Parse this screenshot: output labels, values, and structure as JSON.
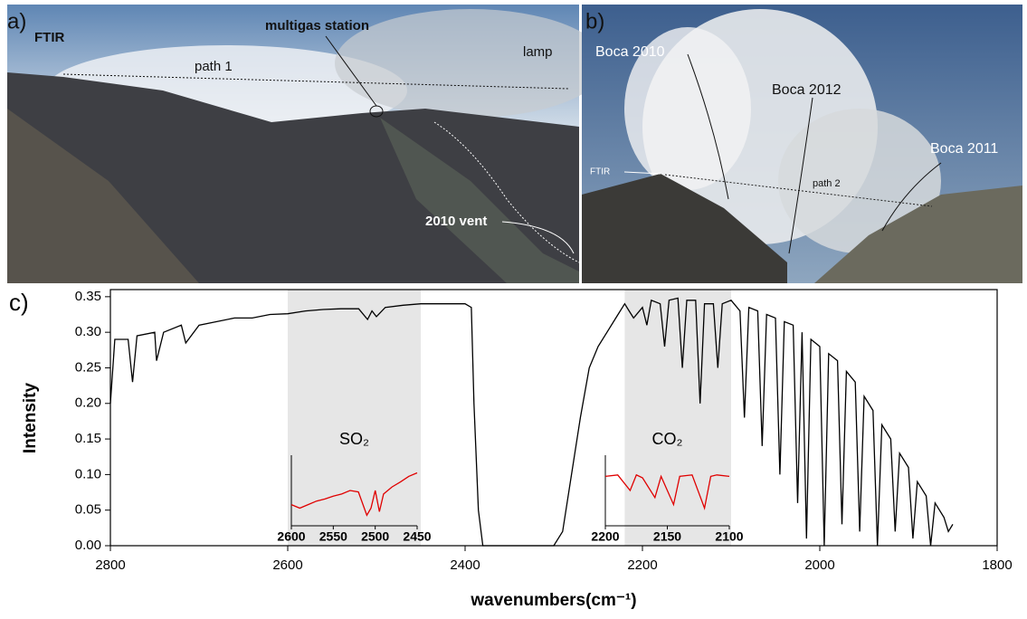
{
  "photos": [
    {
      "panel": "a)",
      "labels": [
        "FTIR",
        "multigas station",
        "path 1",
        "lamp",
        "2010 vent"
      ]
    },
    {
      "panel": "b)",
      "labels": [
        "Boca 2010",
        "Boca 2012",
        "Boca 2011",
        "FTIR",
        "path 2"
      ]
    }
  ],
  "chart_data": [
    {
      "type": "line",
      "panel": "c)",
      "x_label": "wavenumbers(cm⁻¹)",
      "y_label": "Intensity",
      "color": "#000000",
      "xlim": [
        2800,
        1800
      ],
      "ylim": [
        0,
        0.36
      ],
      "xticks": [
        2800,
        2600,
        2400,
        2200,
        2000,
        1800
      ],
      "yticks": [
        {
          "value": 0,
          "label": "0.00"
        },
        {
          "value": 0.05,
          "label": "0.05"
        },
        {
          "value": 0.1,
          "label": "0.10"
        },
        {
          "value": 0.15,
          "label": "0.15"
        },
        {
          "value": 0.2,
          "label": "0.20"
        },
        {
          "value": 0.25,
          "label": "0.25"
        },
        {
          "value": 0.3,
          "label": "0.30"
        },
        {
          "value": 0.35,
          "label": "0.35"
        }
      ],
      "highlight_regions": [
        [
          2600,
          2450
        ],
        [
          2220,
          2100
        ]
      ],
      "x": [
        2800,
        2795,
        2780,
        2775,
        2770,
        2750,
        2748,
        2740,
        2720,
        2715,
        2700,
        2680,
        2660,
        2640,
        2620,
        2600,
        2580,
        2560,
        2540,
        2520,
        2510,
        2505,
        2500,
        2490,
        2470,
        2450,
        2420,
        2400,
        2393,
        2390,
        2385,
        2380,
        2300,
        2290,
        2280,
        2270,
        2260,
        2250,
        2240,
        2230,
        2220,
        2215,
        2210,
        2200,
        2195,
        2190,
        2180,
        2175,
        2170,
        2160,
        2155,
        2150,
        2140,
        2135,
        2130,
        2120,
        2115,
        2110,
        2100,
        2090,
        2085,
        2080,
        2070,
        2065,
        2060,
        2050,
        2045,
        2040,
        2030,
        2025,
        2020,
        2015,
        2010,
        2000,
        1995,
        1990,
        1980,
        1975,
        1970,
        1960,
        1955,
        1950,
        1940,
        1935,
        1930,
        1920,
        1915,
        1910,
        1900,
        1895,
        1890,
        1880,
        1875,
        1870,
        1860,
        1855,
        1850
      ],
      "values": [
        0.2,
        0.29,
        0.29,
        0.23,
        0.295,
        0.3,
        0.26,
        0.3,
        0.31,
        0.285,
        0.31,
        0.315,
        0.32,
        0.32,
        0.325,
        0.326,
        0.33,
        0.332,
        0.333,
        0.333,
        0.318,
        0.33,
        0.322,
        0.335,
        0.338,
        0.34,
        0.34,
        0.34,
        0.335,
        0.2,
        0.05,
        0,
        0,
        0.02,
        0.1,
        0.18,
        0.25,
        0.28,
        0.3,
        0.32,
        0.34,
        0.33,
        0.32,
        0.335,
        0.31,
        0.345,
        0.34,
        0.28,
        0.345,
        0.348,
        0.25,
        0.345,
        0.345,
        0.2,
        0.34,
        0.34,
        0.25,
        0.34,
        0.345,
        0.33,
        0.18,
        0.335,
        0.33,
        0.14,
        0.325,
        0.32,
        0.1,
        0.315,
        0.31,
        0.06,
        0.3,
        0.01,
        0.29,
        0.28,
        0,
        0.27,
        0.26,
        0.03,
        0.245,
        0.23,
        0.02,
        0.21,
        0.19,
        0,
        0.17,
        0.15,
        0.02,
        0.13,
        0.11,
        0.01,
        0.09,
        0.07,
        0,
        0.06,
        0.04,
        0.02,
        0.03
      ]
    },
    {
      "type": "inset",
      "label": "SO₂",
      "color": "#e00000",
      "xlim": [
        2600,
        2450
      ],
      "ylim": [
        0,
        1
      ],
      "xticks": [
        2600,
        2550,
        2500,
        2450
      ],
      "x": [
        2600,
        2590,
        2580,
        2570,
        2560,
        2550,
        2540,
        2530,
        2520,
        2510,
        2505,
        2500,
        2495,
        2490,
        2480,
        2470,
        2460,
        2450
      ],
      "values": [
        0.3,
        0.25,
        0.3,
        0.35,
        0.38,
        0.42,
        0.45,
        0.5,
        0.48,
        0.15,
        0.25,
        0.5,
        0.2,
        0.45,
        0.55,
        0.62,
        0.7,
        0.75
      ]
    },
    {
      "type": "inset",
      "label": "CO₂",
      "color": "#e00000",
      "xlim": [
        2200,
        2100
      ],
      "ylim": [
        0,
        1
      ],
      "xticks": [
        2200,
        2150,
        2100
      ],
      "x": [
        2200,
        2190,
        2180,
        2175,
        2170,
        2160,
        2155,
        2145,
        2140,
        2130,
        2120,
        2115,
        2110,
        2100
      ],
      "values": [
        0.7,
        0.72,
        0.5,
        0.72,
        0.68,
        0.4,
        0.7,
        0.3,
        0.7,
        0.72,
        0.25,
        0.7,
        0.72,
        0.7
      ]
    }
  ]
}
